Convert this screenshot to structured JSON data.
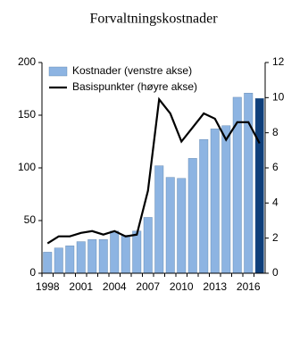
{
  "chart_data": {
    "type": "bar",
    "title": "Forvaltningskostnader",
    "categories": [
      "1998",
      null,
      null,
      "2001",
      null,
      null,
      "2004",
      null,
      null,
      "2007",
      null,
      null,
      "2010",
      null,
      null,
      "2013",
      null,
      null,
      "2016",
      null
    ],
    "series": [
      {
        "name": "Kostnader (venstre akse)",
        "type": "bar",
        "axis": "y",
        "color": "#8db4e2",
        "colors": [
          "#8db4e2",
          "#8db4e2",
          "#8db4e2",
          "#8db4e2",
          "#8db4e2",
          "#8db4e2",
          "#8db4e2",
          "#8db4e2",
          "#8db4e2",
          "#8db4e2",
          "#8db4e2",
          "#8db4e2",
          "#8db4e2",
          "#8db4e2",
          "#8db4e2",
          "#8db4e2",
          "#8db4e2",
          "#8db4e2",
          "#8db4e2",
          "#0f3f7a"
        ],
        "values": [
          20,
          24,
          26,
          30,
          32,
          32,
          40,
          36,
          40,
          53,
          102,
          91,
          90,
          109,
          127,
          137,
          140,
          167,
          171,
          166
        ]
      },
      {
        "name": "Basispunkter (høyre akse)",
        "type": "line",
        "axis": "y2",
        "color": "#000000",
        "values": [
          1.7,
          2.1,
          2.1,
          2.3,
          2.4,
          2.2,
          2.4,
          2.1,
          2.2,
          4.7,
          9.9,
          9.1,
          7.5,
          8.3,
          9.1,
          8.8,
          7.6,
          8.6,
          8.6,
          7.4
        ]
      }
    ],
    "ylim": [
      0,
      200
    ],
    "yticks": [
      0,
      50,
      100,
      150,
      200
    ],
    "y2lim": [
      0,
      12
    ],
    "y2ticks": [
      0,
      2,
      4,
      6,
      8,
      10,
      12
    ],
    "legend": "upper-left"
  }
}
